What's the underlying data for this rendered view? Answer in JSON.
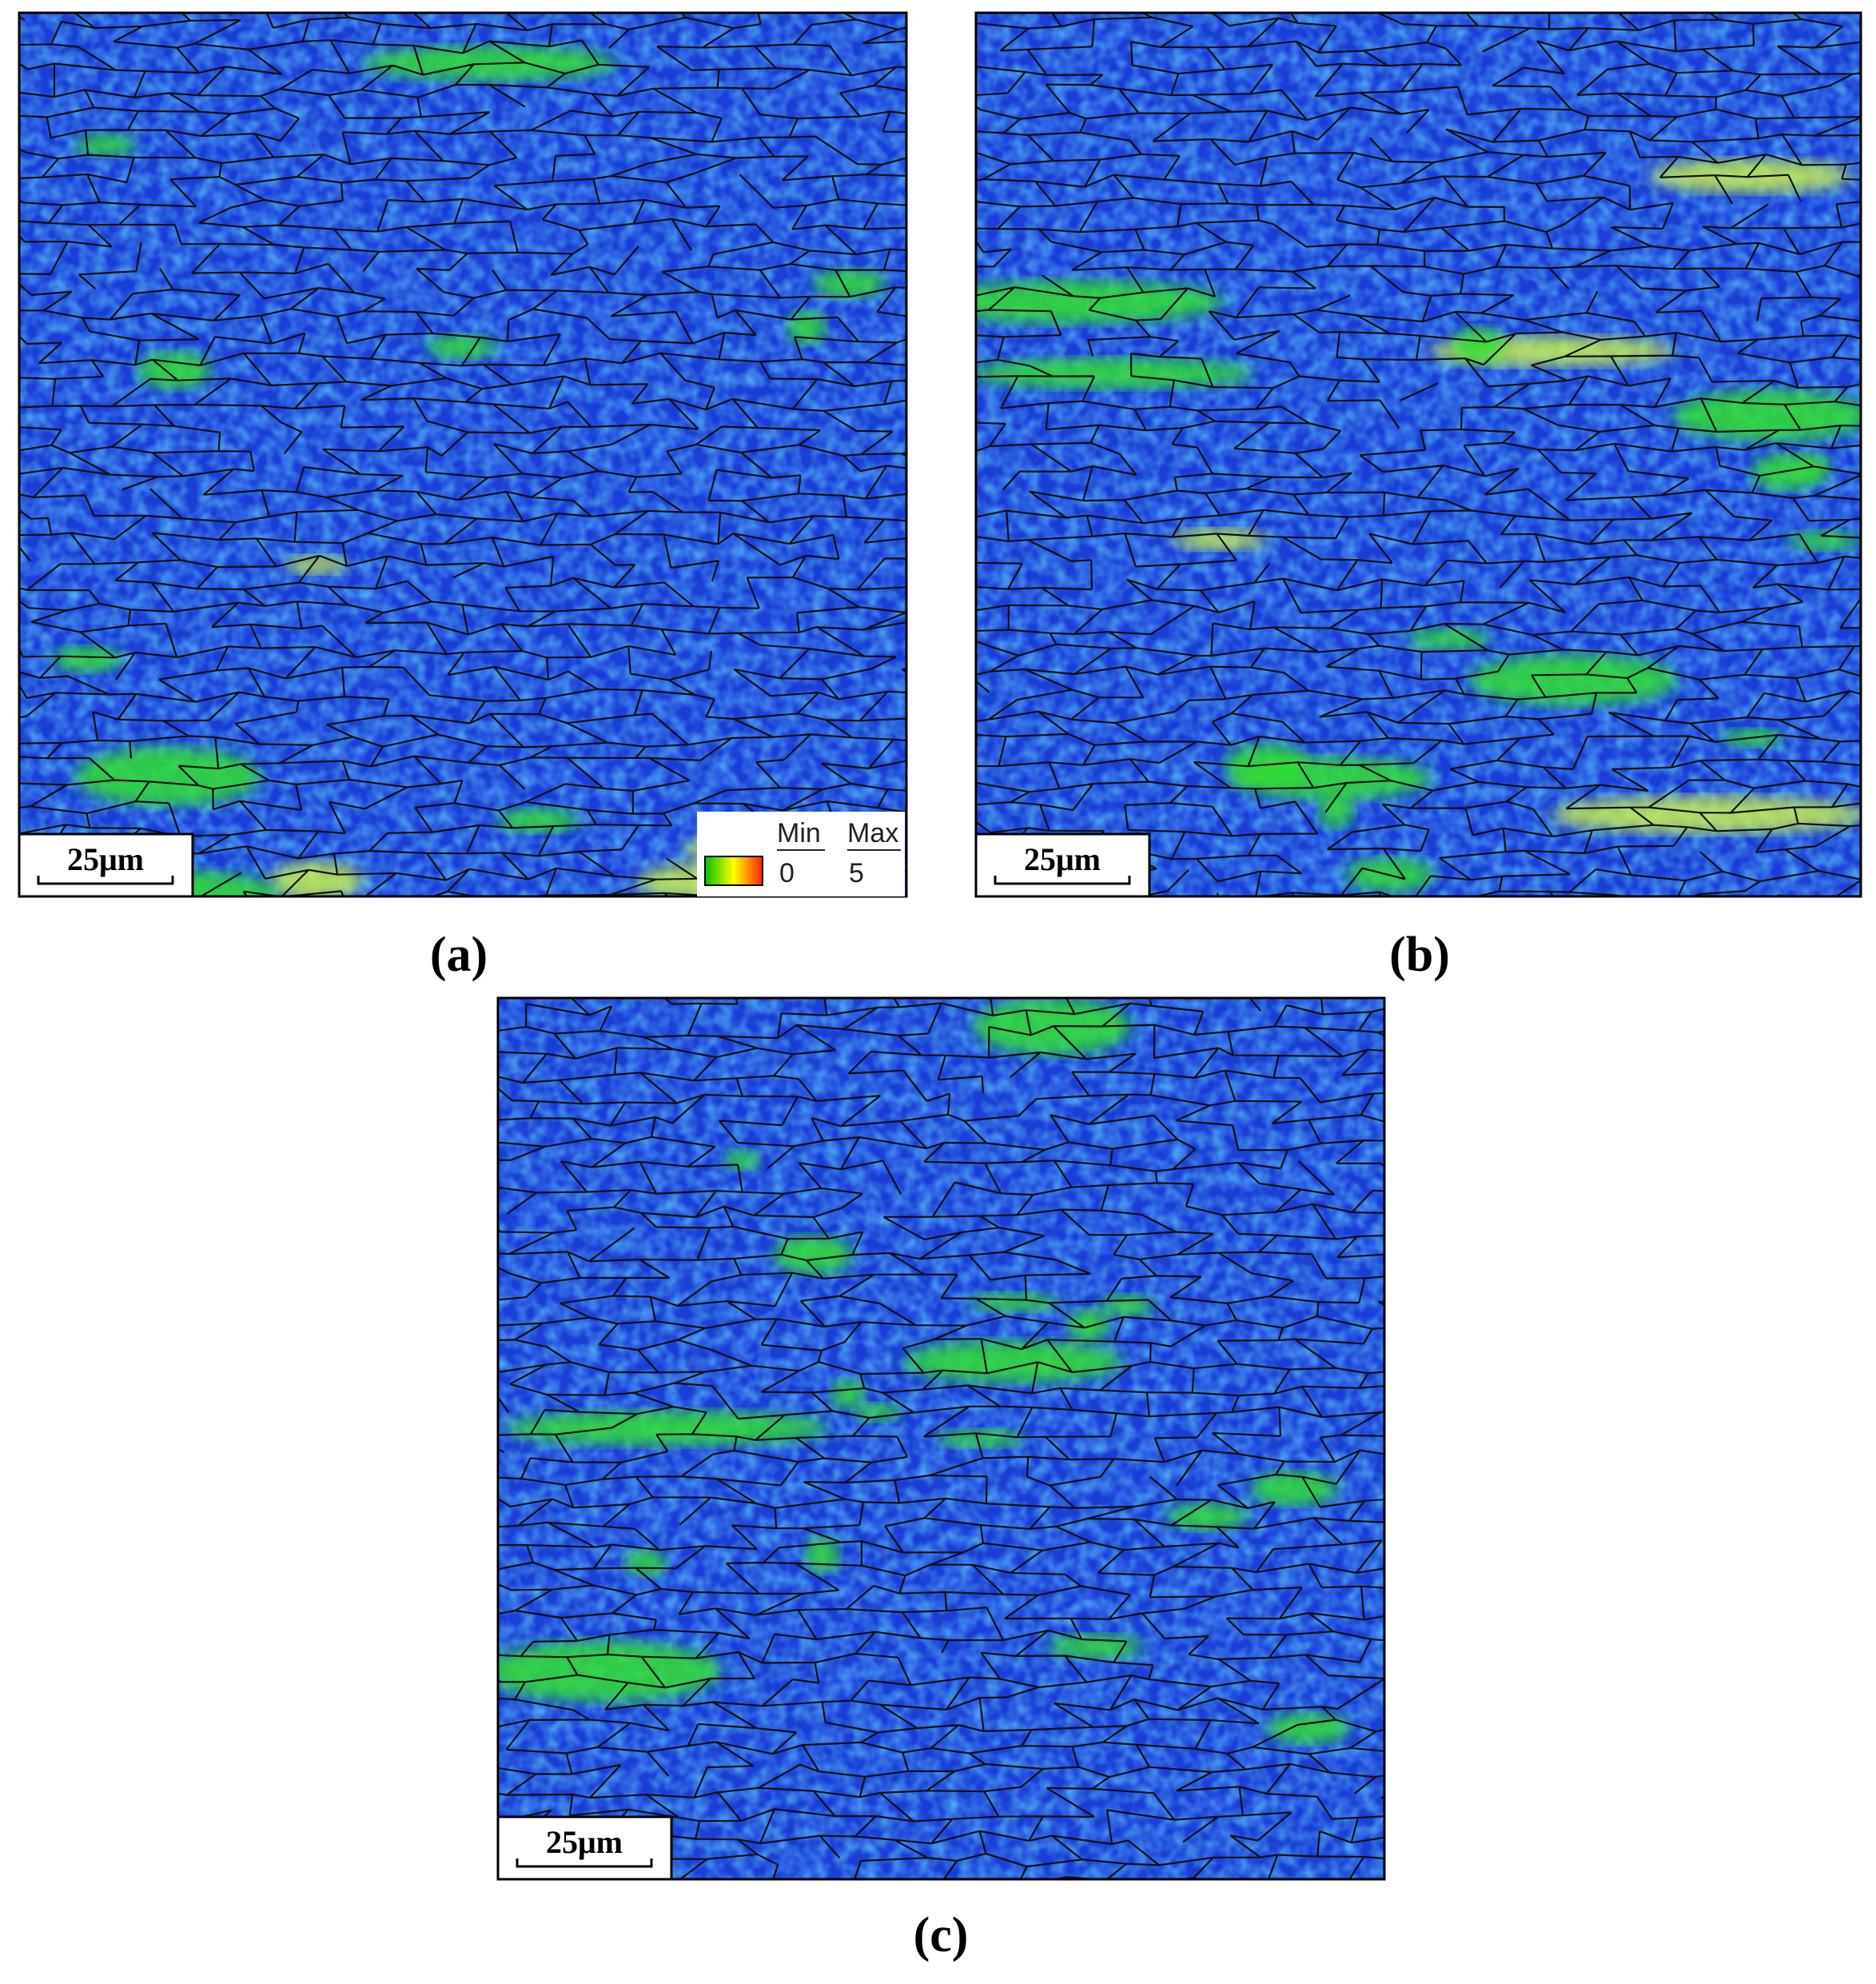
{
  "panels": [
    {
      "label": "(a)",
      "scale_bar": "25μm"
    },
    {
      "label": "(b)",
      "scale_bar": "25μm"
    },
    {
      "label": "(c)",
      "scale_bar": "25μm"
    }
  ],
  "legend": {
    "min_label": "Min",
    "max_label": "Max",
    "min": 0,
    "max": 5
  }
}
